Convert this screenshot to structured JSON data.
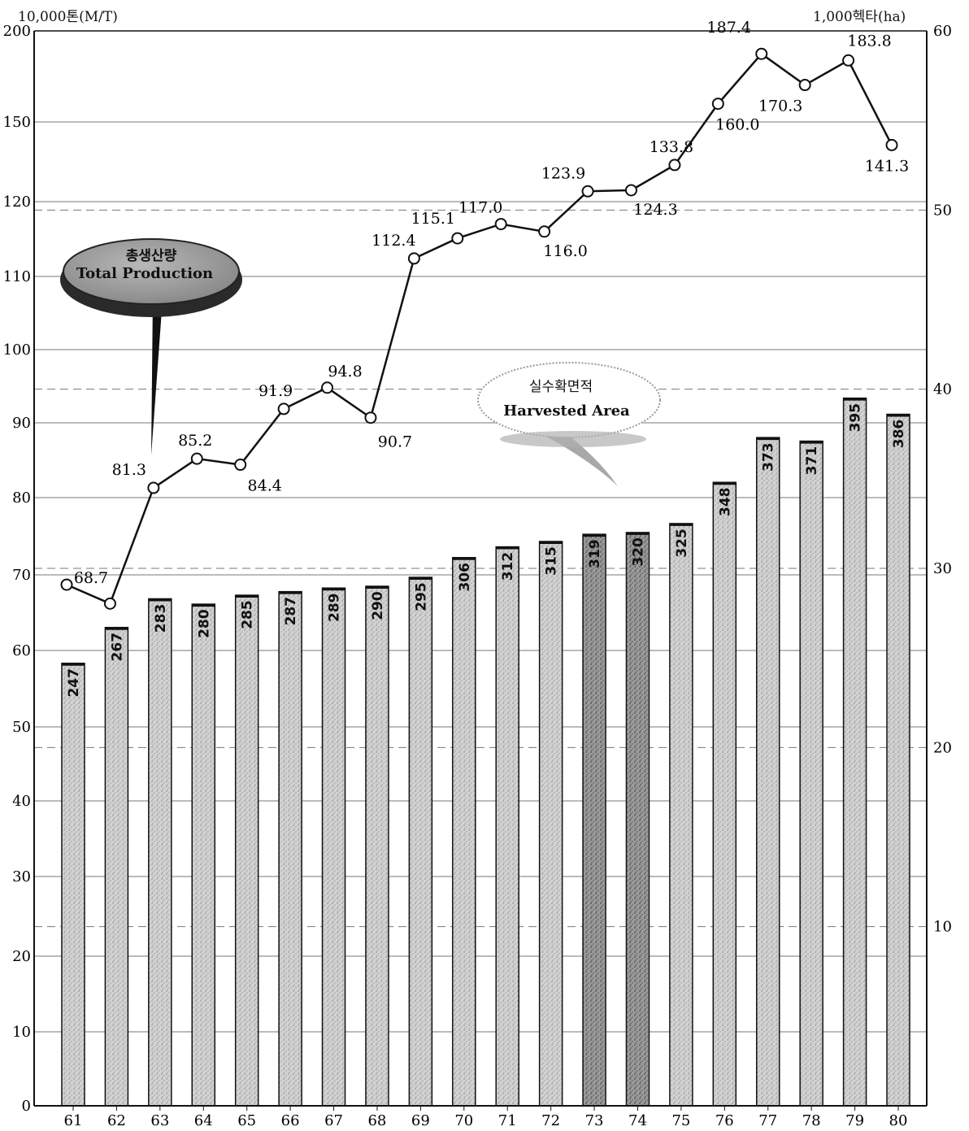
{
  "chart_data": {
    "type": "bar+line",
    "left_axis_unit": "10,000톤(M/T)",
    "right_axis_unit": "1,000헥타(ha)",
    "left_ticks": [
      "0",
      "10",
      "20",
      "30",
      "40",
      "50",
      "60",
      "70",
      "80",
      "90",
      "100",
      "110",
      "120",
      "150",
      "200"
    ],
    "right_ticks": [
      "10",
      "20",
      "30",
      "40",
      "50",
      "60"
    ],
    "categories": [
      "61",
      "62",
      "63",
      "64",
      "65",
      "66",
      "67",
      "68",
      "69",
      "70",
      "71",
      "72",
      "73",
      "74",
      "75",
      "76",
      "77",
      "78",
      "79",
      "80"
    ],
    "series": [
      {
        "name": "Harvested Area",
        "name_ko": "실수확면적",
        "axis": "right",
        "type": "bar",
        "values": [
          247,
          267,
          283,
          280,
          285,
          287,
          289,
          290,
          295,
          306,
          312,
          315,
          319,
          320,
          325,
          348,
          373,
          371,
          395,
          386
        ],
        "value_labels": [
          "247",
          "267",
          "283",
          "280",
          "285",
          "287",
          "289",
          "290",
          "295",
          "306",
          "312",
          "315",
          "319",
          "320",
          "325",
          "348",
          "373",
          "371",
          "395",
          "386"
        ]
      },
      {
        "name": "Total Production",
        "name_ko": "총생산량",
        "axis": "left",
        "type": "line",
        "values": [
          68.7,
          null,
          81.3,
          85.2,
          84.4,
          91.9,
          94.8,
          90.7,
          112.4,
          115.1,
          117.0,
          116.0,
          123.9,
          124.3,
          133.8,
          160.0,
          187.4,
          170.3,
          183.8,
          141.3
        ],
        "value_labels": [
          "68.7",
          "",
          "81.3",
          "85.2",
          "84.4",
          "91.9",
          "94.8",
          "90.7",
          "112.4",
          "115.1",
          "117.0",
          "116.0",
          "123.9",
          "124.3",
          "133.8",
          "160.0",
          "187.4",
          "170.3",
          "183.8",
          "141.3"
        ]
      }
    ],
    "colors": {
      "bar_fill": "#c9c9c9",
      "bar_dark": "#8c8c8c",
      "line": "#111111",
      "callout": "#9a9a9a"
    }
  }
}
